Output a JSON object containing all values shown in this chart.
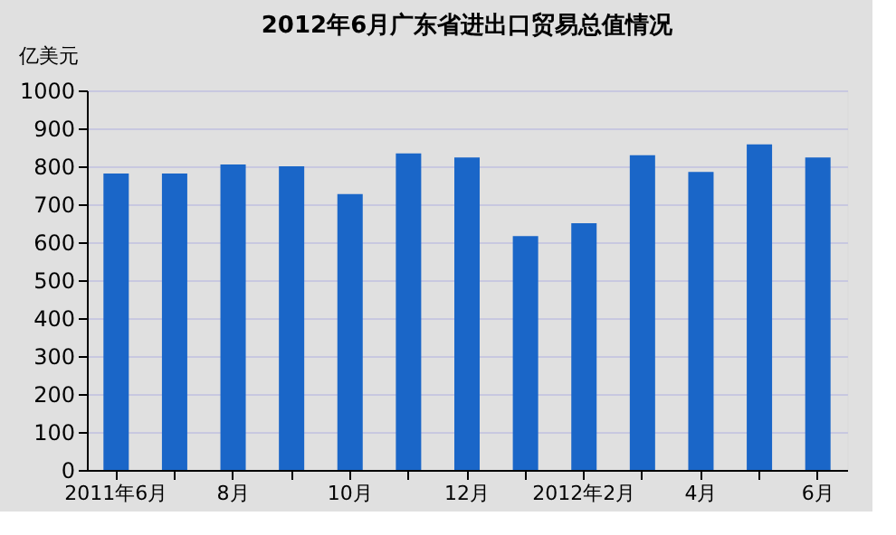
{
  "chart_data": {
    "type": "bar",
    "title": "2012年6月广东省进出口贸易总值情况",
    "ylabel": "亿美元",
    "categories": [
      "2011年6月",
      null,
      "8月",
      null,
      "10月",
      null,
      "12月",
      null,
      "2012年2月",
      null,
      "4月",
      null,
      "6月"
    ],
    "series": [
      {
        "color": "#1a66c8",
        "values": [
          781,
          781,
          805,
          800,
          727,
          834,
          823,
          616,
          650,
          829,
          785,
          858,
          823
        ]
      }
    ],
    "ylim": [
      0,
      1000
    ],
    "yticks": [
      0,
      100,
      200,
      300,
      400,
      500,
      600,
      700,
      800,
      900,
      1000
    ],
    "grid": "y"
  }
}
